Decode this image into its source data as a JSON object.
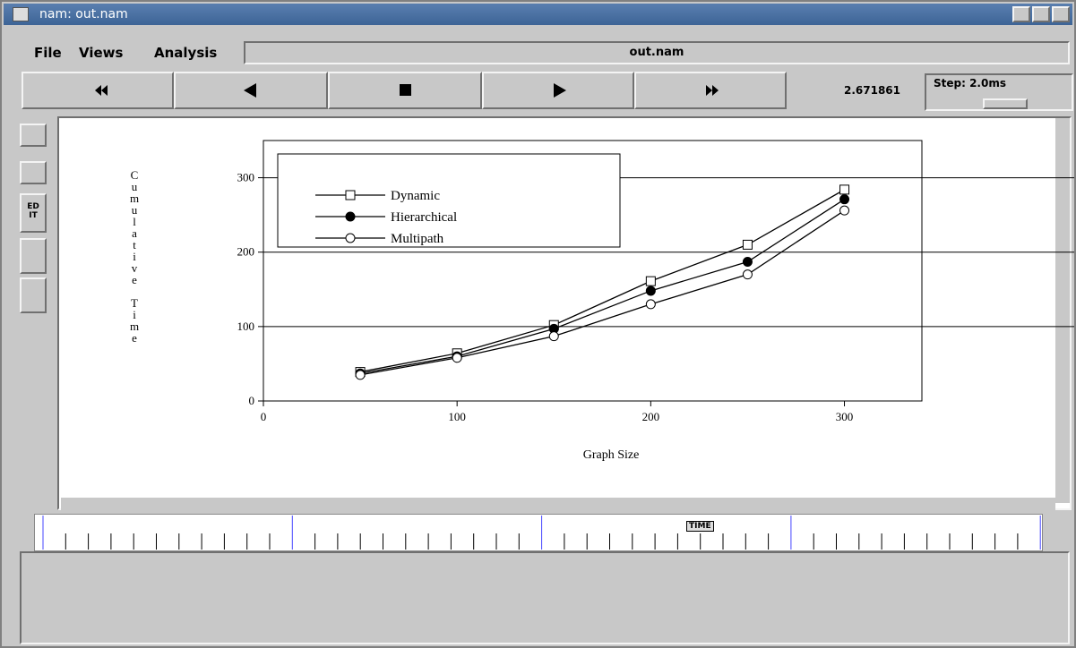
{
  "window": {
    "title": "nam: out.nam",
    "menu": [
      "File",
      "Views",
      "Analysis"
    ],
    "filename": "out.nam",
    "time": "2.671861",
    "step": "Step: 2.0ms",
    "edit_tool": "ED IT",
    "time_marker": "TIME"
  },
  "chart_data": {
    "type": "line",
    "x_label": "Graph Size",
    "y_label": "Cumulative Time",
    "x": [
      50,
      100,
      150,
      200,
      250,
      300
    ],
    "series": [
      {
        "name": "Dynamic",
        "color": "#000000",
        "marker": "open-square",
        "values": [
          39,
          64,
          102,
          161,
          210,
          284
        ]
      },
      {
        "name": "Hierarchical",
        "color": "#000000",
        "marker": "filled-circle",
        "values": [
          37,
          60,
          97,
          148,
          187,
          271
        ]
      },
      {
        "name": "Multipath",
        "color": "#000000",
        "marker": "open-circle",
        "values": [
          35,
          58,
          87,
          130,
          170,
          256
        ]
      }
    ],
    "xlim": [
      0,
      340
    ],
    "ylim": [
      0,
      350
    ],
    "xticks": [
      0,
      100,
      200,
      300
    ],
    "yticks": [
      0,
      100,
      200,
      300
    ],
    "grid": true,
    "legend": "upper-left"
  }
}
